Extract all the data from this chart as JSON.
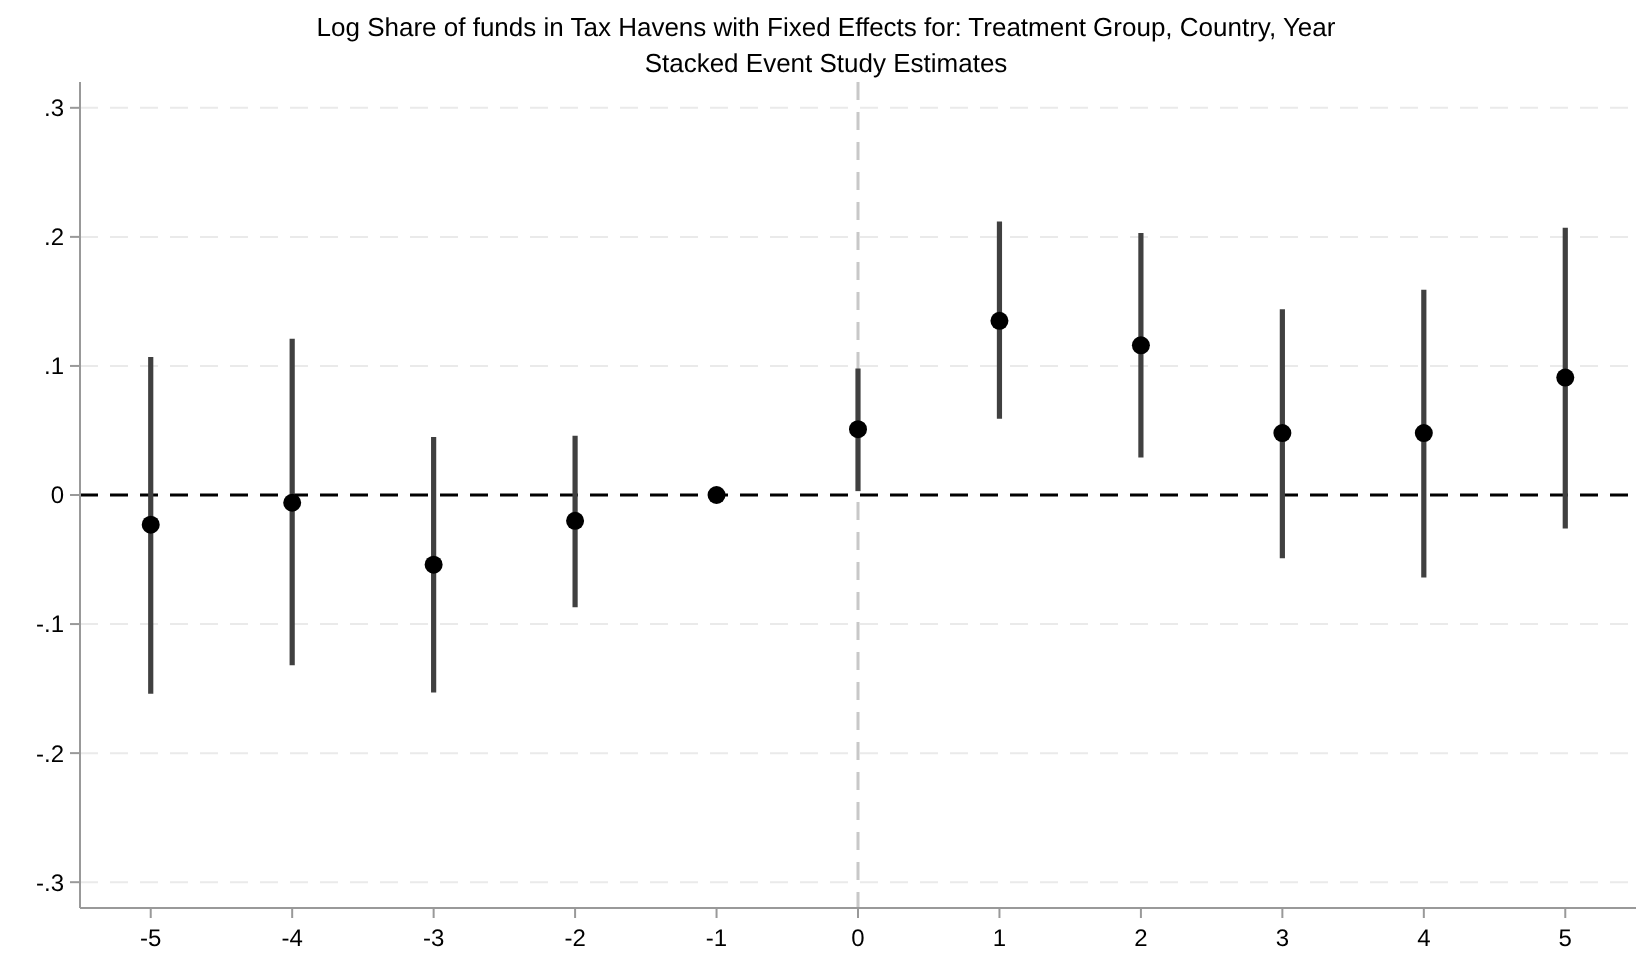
{
  "chart_data": {
    "type": "scatter",
    "title": "Log Share of funds in Tax Havens with Fixed Effects for: Treatment Group, Country, Year",
    "subtitle": "Stacked Event Study Estimates",
    "x": [
      -5,
      -4,
      -3,
      -2,
      -1,
      0,
      1,
      2,
      3,
      4,
      5
    ],
    "series": [
      {
        "color": "#000000",
        "values": [
          -0.023,
          -0.006,
          -0.054,
          -0.02,
          0,
          0.051,
          0.135,
          0.116,
          0.048,
          0.048,
          0.091
        ],
        "errors": [
          [
            -0.154,
            0.107
          ],
          [
            -0.132,
            0.121
          ],
          [
            -0.153,
            0.045
          ],
          [
            -0.087,
            0.046
          ],
          null,
          [
            0.003,
            0.098
          ],
          [
            0.059,
            0.212
          ],
          [
            0.029,
            0.203
          ],
          [
            -0.049,
            0.144
          ],
          [
            -0.064,
            0.159
          ],
          [
            -0.026,
            0.207
          ]
        ]
      }
    ],
    "xlim": [
      -5.5,
      5.5
    ],
    "xticks": [
      -5,
      -4,
      -3,
      -2,
      -1,
      0,
      1,
      2,
      3,
      4,
      5
    ],
    "ylim": [
      -0.32,
      0.32
    ],
    "yticks": [
      {
        "value": -0.3,
        "label": "-.3"
      },
      {
        "value": -0.2,
        "label": "-.2"
      },
      {
        "value": -0.1,
        "label": "-.1"
      },
      0,
      {
        "value": 0.1,
        "label": ".1"
      },
      {
        "value": 0.2,
        "label": ".2"
      },
      {
        "value": 0.3,
        "label": ".3"
      }
    ],
    "grid": "y",
    "marker": "circle",
    "ref_lines": [
      {
        "axis": "y",
        "value": 0,
        "color": "#000000",
        "line_style": "dashed"
      },
      {
        "axis": "x",
        "value": 0,
        "color": "#c8c8c8",
        "line_style": "dashed"
      }
    ]
  }
}
